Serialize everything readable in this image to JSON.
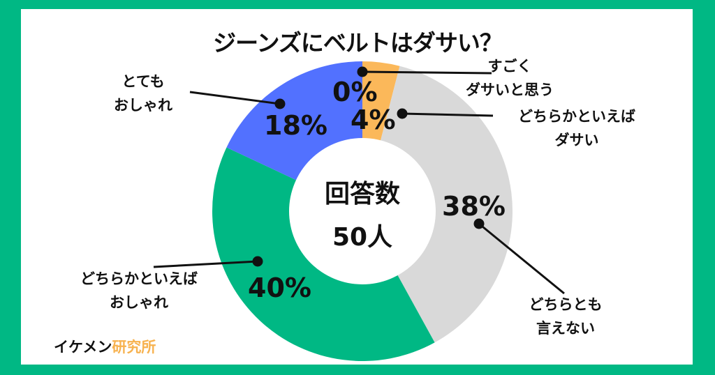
{
  "title": "ジーンズにベルトはダサい？",
  "center": {
    "line1": "回答数",
    "line2": "50人"
  },
  "brand": {
    "part1": "イケメン",
    "part2": "研究所"
  },
  "colors": {
    "frame": "#00b884",
    "very_lame": "#f7b24f",
    "somewhat_lame": "#fbb85a",
    "neither": "#d9d9d9",
    "somewhat_stylish": "#00b884",
    "very_stylish": "#5271ff"
  },
  "labels": {
    "very_lame": {
      "line1": "すごく",
      "line2": "ダサいと思う",
      "pct": "0%"
    },
    "somewhat_lame": {
      "line1": "どちらかといえば",
      "line2": "ダサい",
      "pct": "4%"
    },
    "neither": {
      "line1": "どちらとも",
      "line2": "言えない",
      "pct": "38%"
    },
    "somewhat_stylish": {
      "line1": "どちらかといえば",
      "line2": "おしゃれ",
      "pct": "40%"
    },
    "very_stylish": {
      "line1": "とても",
      "line2": "おしゃれ",
      "pct": "18%"
    }
  },
  "chart_data": {
    "type": "pie",
    "subtype": "donut",
    "title": "ジーンズにベルトはダサい？",
    "center_label": "回答数 50人",
    "categories": [
      "すごくダサいと思う",
      "どちらかといえばダサい",
      "どちらとも言えない",
      "どちらかといえばおしゃれ",
      "とてもおしゃれ"
    ],
    "values": [
      0,
      4,
      38,
      40,
      18
    ],
    "unit": "%",
    "colors": [
      "#f7b24f",
      "#fbb85a",
      "#d9d9d9",
      "#00b884",
      "#5271ff"
    ],
    "start_angle": "12 o'clock",
    "direction": "clockwise",
    "total_respondents": 50
  }
}
